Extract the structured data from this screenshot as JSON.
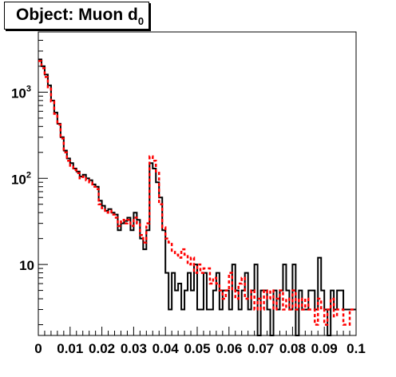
{
  "title": {
    "main": "Object: Muon d",
    "subscript": "0"
  },
  "chart_data": {
    "type": "line",
    "title": "Object: Muon d0",
    "xlabel": "",
    "ylabel": "",
    "xlim": [
      0,
      0.1
    ],
    "ylim": [
      1.5,
      5000
    ],
    "yscale": "log",
    "grid": false,
    "x_ticks": [
      "0",
      "0.01",
      "0.02",
      "0.03",
      "0.04",
      "0.05",
      "0.06",
      "0.07",
      "0.08",
      "0.09",
      "0.1"
    ],
    "y_ticks": [
      {
        "value": 10,
        "label": "10",
        "sup": ""
      },
      {
        "value": 100,
        "label": "10",
        "sup": "2"
      },
      {
        "value": 1000,
        "label": "10",
        "sup": "3"
      }
    ],
    "bin_width": 0.001,
    "series": [
      {
        "color": "#000000",
        "style": "solid",
        "values": [
          2400,
          2000,
          1600,
          1200,
          800,
          580,
          430,
          300,
          210,
          170,
          150,
          130,
          120,
          105,
          110,
          100,
          95,
          85,
          80,
          55,
          48,
          42,
          44,
          40,
          38,
          25,
          30,
          32,
          35,
          25,
          40,
          33,
          20,
          15,
          25,
          150,
          130,
          90,
          60,
          25,
          8,
          3,
          8,
          5,
          6,
          3,
          5,
          8,
          5,
          10,
          3,
          3,
          8,
          3,
          3,
          5,
          8,
          3,
          5,
          5,
          3,
          10,
          5,
          3,
          5,
          8,
          3,
          5,
          10,
          1.5,
          5,
          5,
          3,
          1,
          5,
          3,
          5,
          10,
          5,
          3,
          10,
          1,
          5,
          3,
          3,
          5,
          5,
          3,
          12,
          5,
          3,
          1.5,
          5,
          3,
          5,
          5,
          3,
          3,
          3,
          3
        ]
      },
      {
        "color": "#ff0000",
        "style": "dashed",
        "values": [
          2300,
          1900,
          1500,
          1100,
          780,
          560,
          420,
          290,
          200,
          160,
          140,
          125,
          115,
          100,
          105,
          95,
          90,
          80,
          75,
          50,
          45,
          40,
          42,
          38,
          35,
          28,
          33,
          30,
          33,
          28,
          35,
          30,
          22,
          18,
          30,
          180,
          160,
          120,
          50,
          27,
          20,
          18,
          14,
          13,
          12,
          15,
          13,
          10,
          12,
          8,
          10,
          8,
          9,
          9,
          6,
          7,
          6,
          5,
          4,
          5,
          8,
          5,
          4,
          6,
          7,
          4,
          4,
          5,
          3,
          4,
          3,
          5,
          4,
          5,
          3,
          4,
          5,
          3,
          4,
          3,
          5,
          3,
          4,
          3,
          4,
          3,
          3,
          2,
          4,
          3,
          2,
          3,
          4,
          2.5,
          3,
          3,
          2,
          2,
          3,
          3
        ]
      }
    ]
  }
}
